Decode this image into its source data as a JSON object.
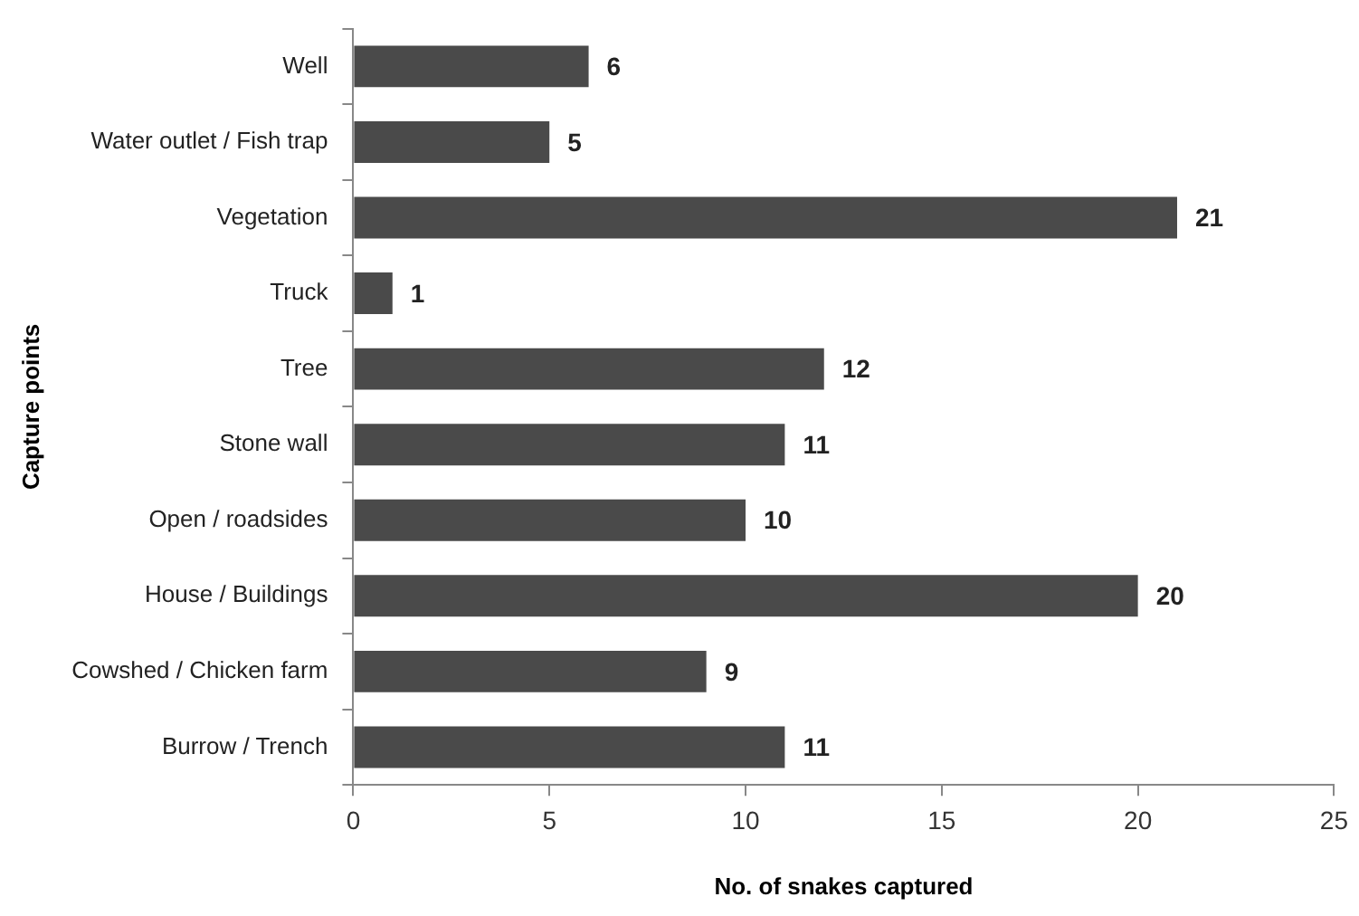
{
  "chart_data": {
    "type": "bar",
    "orientation": "horizontal",
    "xlabel": "No. of snakes captured",
    "ylabel": "Capture points",
    "categories": [
      "Well",
      "Water outlet / Fish trap",
      "Vegetation",
      "Truck",
      "Tree",
      "Stone wall",
      "Open / roadsides",
      "House / Buildings",
      "Cowshed / Chicken farm",
      "Burrow / Trench"
    ],
    "values": [
      6,
      5,
      21,
      1,
      12,
      11,
      10,
      20,
      9,
      11
    ],
    "color": "#4a4a4a",
    "xlim": [
      0,
      25
    ],
    "xticks": [
      0,
      5,
      10,
      15,
      20,
      25
    ],
    "grid": false,
    "legend": false,
    "data_labels": true
  }
}
